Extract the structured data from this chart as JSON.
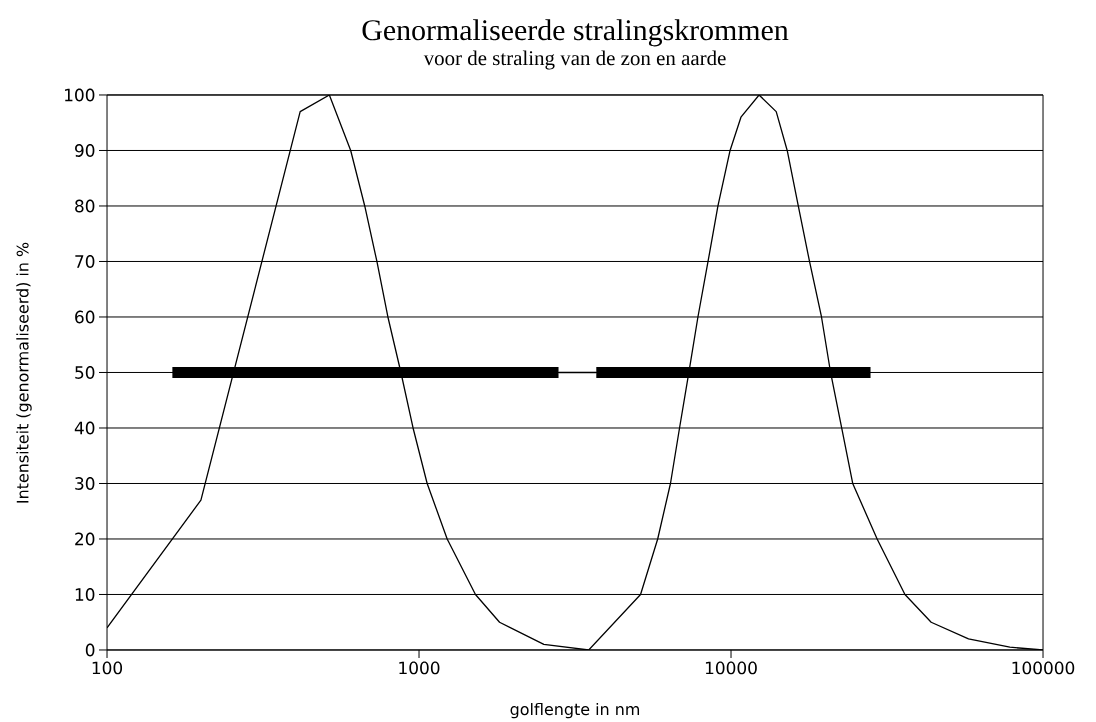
{
  "chart_data": {
    "type": "line",
    "title": "Genormaliseerde stralingskrommen",
    "subtitle": "voor de straling van de zon en aarde",
    "xlabel": "golflengte in nm",
    "ylabel": "Intensiteit (genormaliseerd) in %",
    "log": "x",
    "grid": "y",
    "xlim": [
      100,
      100000
    ],
    "ylim": [
      0,
      100
    ],
    "xticks": [
      100,
      1000,
      10000,
      100000
    ],
    "yticks": [
      0,
      10,
      20,
      30,
      40,
      50,
      60,
      70,
      80,
      90,
      100
    ],
    "series": [
      {
        "color": "#000000",
        "x": [
          100,
          200,
          416,
          516,
          604,
          670,
          733,
          795,
          875,
          957,
          1062,
          1231,
          1517,
          1812,
          2512,
          3500
        ],
        "values": [
          4,
          27,
          97,
          100,
          90,
          80,
          70,
          60,
          50,
          40,
          30,
          20,
          10,
          5,
          1,
          0
        ]
      },
      {
        "color": "#000000",
        "x": [
          3500,
          5129,
          5821,
          6397,
          6839,
          7327,
          7834,
          8440,
          9080,
          9931,
          10760,
          12300,
          13960,
          15140,
          16430,
          17850,
          19500,
          20850,
          22630,
          24550,
          29400,
          36100,
          43800,
          57700,
          78300,
          100000
        ],
        "values": [
          0,
          10,
          20,
          30,
          40,
          50,
          60,
          70,
          80,
          90,
          96,
          100,
          97,
          90,
          80,
          70,
          60,
          50,
          40,
          30,
          20,
          10,
          5,
          2,
          0.5,
          0
        ]
      },
      {
        "color": "#000000",
        "x": [
          162,
          2800
        ],
        "values": [
          50,
          50
        ]
      },
      {
        "color": "#000000",
        "x": [
          2800,
          3700
        ],
        "values": [
          50,
          50
        ]
      },
      {
        "color": "#000000",
        "x": [
          3700,
          28000
        ],
        "values": [
          50,
          50
        ]
      }
    ]
  }
}
